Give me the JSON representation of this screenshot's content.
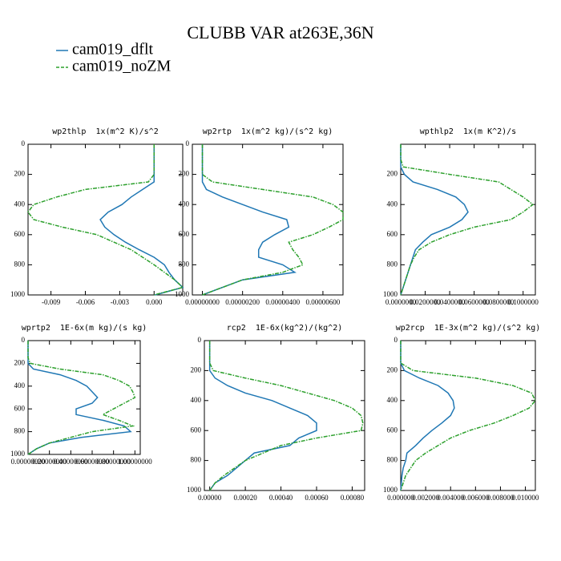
{
  "title": "CLUBB VAR at263E,36N",
  "legend": [
    {
      "name": "cam019_dflt",
      "color": "#1f77b4"
    },
    {
      "name": "cam019_noZM",
      "color": "#2ca02c",
      "dashed": true
    }
  ],
  "chart_data": [
    {
      "type": "line",
      "title": "wp2thlp  1x(m^2 K)/s^2",
      "y_inverted": true,
      "y": [
        0,
        100,
        150,
        200,
        250,
        300,
        350,
        400,
        450,
        500,
        550,
        600,
        650,
        700,
        750,
        800,
        850,
        900,
        950,
        1000
      ],
      "xlim": [
        -0.011,
        0.0025
      ],
      "xticks": [
        -0.009,
        -0.006,
        -0.003,
        {
          "value": 0,
          "label": "0.000"
        }
      ],
      "ylim": [
        0,
        1000
      ],
      "yticks": [
        0,
        200,
        400,
        600,
        800,
        1000
      ],
      "series": [
        {
          "values": [
            0,
            0,
            0,
            0,
            0,
            -0.001,
            -0.002,
            -0.0028,
            -0.004,
            -0.0047,
            -0.0043,
            -0.0035,
            -0.0025,
            -0.0013,
            0,
            0.0009,
            0.0013,
            0.0018,
            0.0025,
            0.0001
          ]
        },
        {
          "values": [
            0,
            0,
            0,
            0,
            -0.0005,
            -0.006,
            -0.0085,
            -0.0105,
            -0.011,
            -0.0105,
            -0.008,
            -0.005,
            -0.0035,
            -0.002,
            -0.001,
            0,
            0.0009,
            0.0018,
            0.0025,
            0
          ]
        }
      ]
    },
    {
      "type": "line",
      "title": "wp2rtp  1x(m^2 kg)/(s^2 kg)",
      "y_inverted": true,
      "y": [
        0,
        100,
        150,
        200,
        250,
        300,
        350,
        400,
        450,
        500,
        550,
        600,
        650,
        700,
        750,
        800,
        850,
        900,
        950,
        1000
      ],
      "xlim": [
        -5e-07,
        7e-06
      ],
      "xticks": [
        {
          "value": 0,
          "label": "0.00000000"
        },
        {
          "value": 2e-06,
          "label": "0.00000200"
        },
        {
          "value": 4e-06,
          "label": "0.00000400"
        },
        {
          "value": 6e-06,
          "label": "0.00000600"
        }
      ],
      "ylim": [
        0,
        1000
      ],
      "yticks": [
        0,
        200,
        400,
        600,
        800,
        1000
      ],
      "series": [
        {
          "values": [
            0,
            0,
            0,
            0,
            0,
            2e-07,
            1e-06,
            2e-06,
            3e-06,
            4.2e-06,
            4.3e-06,
            3.6e-06,
            3e-06,
            2.8e-06,
            2.8e-06,
            4e-06,
            4.6e-06,
            2e-06,
            1e-06,
            0
          ]
        },
        {
          "values": [
            0,
            0,
            0,
            0,
            5e-07,
            3e-06,
            5.5e-06,
            6.5e-06,
            7e-06,
            7e-06,
            6.3e-06,
            5.5e-06,
            4.3e-06,
            4.5e-06,
            4.8e-06,
            5e-06,
            4e-06,
            2e-06,
            1e-06,
            0
          ]
        }
      ]
    },
    {
      "type": "line",
      "title": "wpthlp2  1x(m K^2)/s",
      "y_inverted": true,
      "y": [
        0,
        100,
        150,
        200,
        250,
        300,
        350,
        400,
        450,
        500,
        550,
        600,
        650,
        700,
        750,
        800,
        850,
        900,
        950,
        1000
      ],
      "xlim": [
        0,
        0.11
      ],
      "xticks": [
        {
          "value": 0,
          "label": "0.0000000"
        },
        {
          "value": 0.02,
          "label": "0.0200000"
        },
        {
          "value": 0.04,
          "label": "0.0400000"
        },
        {
          "value": 0.06,
          "label": "0.0600000"
        },
        {
          "value": 0.08,
          "label": "0.0800000"
        },
        {
          "value": 0.1,
          "label": "0.1000000"
        }
      ],
      "ylim": [
        0,
        1000
      ],
      "yticks": [
        200,
        400,
        600,
        800,
        1000
      ],
      "series": [
        {
          "values": [
            0,
            0,
            0,
            0.003,
            0.01,
            0.03,
            0.045,
            0.052,
            0.055,
            0.05,
            0.04,
            0.025,
            0.018,
            0.012,
            0.01,
            0.008,
            0.006,
            0.004,
            0.002,
            0
          ]
        },
        {
          "values": [
            0,
            0,
            0.002,
            0.04,
            0.08,
            0.09,
            0.1,
            0.108,
            0.1,
            0.09,
            0.06,
            0.04,
            0.025,
            0.015,
            0.011,
            0.008,
            0.006,
            0.004,
            0.002,
            0
          ]
        }
      ]
    },
    {
      "type": "line",
      "title": "wprtp2  1E-6x(m kg)/(s kg)",
      "y_inverted": true,
      "y": [
        0,
        100,
        150,
        200,
        250,
        300,
        350,
        400,
        450,
        500,
        550,
        600,
        650,
        700,
        750,
        800,
        850,
        900,
        950,
        1000
      ],
      "xlim": [
        0,
        1.05
      ],
      "xticks": [
        {
          "value": 0,
          "label": "0.00000000"
        },
        {
          "value": 0.2,
          "label": "0.20000000"
        },
        {
          "value": 0.4,
          "label": "0.40000000"
        },
        {
          "value": 0.6,
          "label": "0.60000000"
        },
        {
          "value": 0.8,
          "label": "0.80000000"
        },
        {
          "value": 1,
          "label": "1.00000000"
        }
      ],
      "ylim": [
        0,
        1000
      ],
      "yticks": [
        0,
        200,
        400,
        600,
        800,
        1000
      ],
      "series": [
        {
          "values": [
            0,
            0,
            0,
            0,
            0.05,
            0.3,
            0.45,
            0.55,
            0.6,
            0.65,
            0.6,
            0.45,
            0.45,
            0.7,
            0.9,
            0.96,
            0.5,
            0.2,
            0.08,
            0
          ]
        },
        {
          "values": [
            0,
            0,
            0,
            0.02,
            0.3,
            0.7,
            0.85,
            0.95,
            0.98,
            1,
            0.9,
            0.8,
            0.7,
            0.85,
            0.98,
            0.6,
            0.4,
            0.2,
            0.08,
            0
          ]
        }
      ]
    },
    {
      "type": "line",
      "title": "rcp2  1E-6x(kg^2)/(kg^2)",
      "y_inverted": true,
      "y": [
        0,
        100,
        150,
        200,
        250,
        300,
        350,
        400,
        450,
        500,
        550,
        600,
        650,
        700,
        750,
        800,
        850,
        900,
        950,
        1000
      ],
      "xlim": [
        -3e-05,
        0.00087
      ],
      "xticks": [
        {
          "value": 0,
          "label": "0.00000"
        },
        {
          "value": 0.0002,
          "label": "0.00020"
        },
        {
          "value": 0.0004,
          "label": "0.00040"
        },
        {
          "value": 0.0006,
          "label": "0.00060"
        },
        {
          "value": 0.0008,
          "label": "0.00080"
        }
      ],
      "ylim": [
        0,
        1000
      ],
      "yticks": [
        0,
        200,
        400,
        600,
        800,
        1000
      ],
      "series": [
        {
          "values": [
            0,
            0,
            0,
            0,
            3e-05,
            0.0001,
            0.0002,
            0.00035,
            0.00045,
            0.00055,
            0.0006,
            0.0006,
            0.0005,
            0.00045,
            0.00025,
            0.0002,
            0.00015,
            0.0001,
            3e-05,
            0
          ]
        },
        {
          "values": [
            0,
            0,
            0,
            2e-05,
            0.0002,
            0.0004,
            0.00055,
            0.0007,
            0.0008,
            0.00085,
            0.00086,
            0.00085,
            0.0006,
            0.0004,
            0.0003,
            0.0002,
            0.00014,
            8e-05,
            3e-05,
            0
          ]
        }
      ]
    },
    {
      "type": "line",
      "title": "wp2rcp  1E-3x(m^2 kg)/(s^2 kg)",
      "y_inverted": true,
      "y": [
        0,
        100,
        150,
        200,
        250,
        300,
        350,
        400,
        450,
        500,
        550,
        600,
        650,
        700,
        750,
        800,
        850,
        900,
        950,
        1000
      ],
      "xlim": [
        0,
        0.0108
      ],
      "xticks": [
        {
          "value": 0,
          "label": "0.000000"
        },
        {
          "value": 0.002,
          "label": "0.002000"
        },
        {
          "value": 0.004,
          "label": "0.004000"
        },
        {
          "value": 0.006,
          "label": "0.006000"
        },
        {
          "value": 0.008,
          "label": "0.008000"
        },
        {
          "value": 0.01,
          "label": "0.010000"
        }
      ],
      "ylim": [
        0,
        1000
      ],
      "yticks": [
        0,
        200,
        400,
        600,
        800,
        1000
      ],
      "series": [
        {
          "values": [
            0,
            0,
            0,
            0.0003,
            0.0015,
            0.003,
            0.0038,
            0.0042,
            0.0043,
            0.004,
            0.0033,
            0.0025,
            0.0018,
            0.0012,
            0.0005,
            0.0004,
            0.0002,
            0.0001,
            5e-05,
            0
          ]
        },
        {
          "values": [
            0,
            0,
            0,
            0.001,
            0.006,
            0.009,
            0.0105,
            0.0108,
            0.0103,
            0.009,
            0.0075,
            0.0055,
            0.004,
            0.003,
            0.002,
            0.0012,
            0.0008,
            0.0004,
            0.0002,
            0
          ]
        }
      ]
    }
  ]
}
